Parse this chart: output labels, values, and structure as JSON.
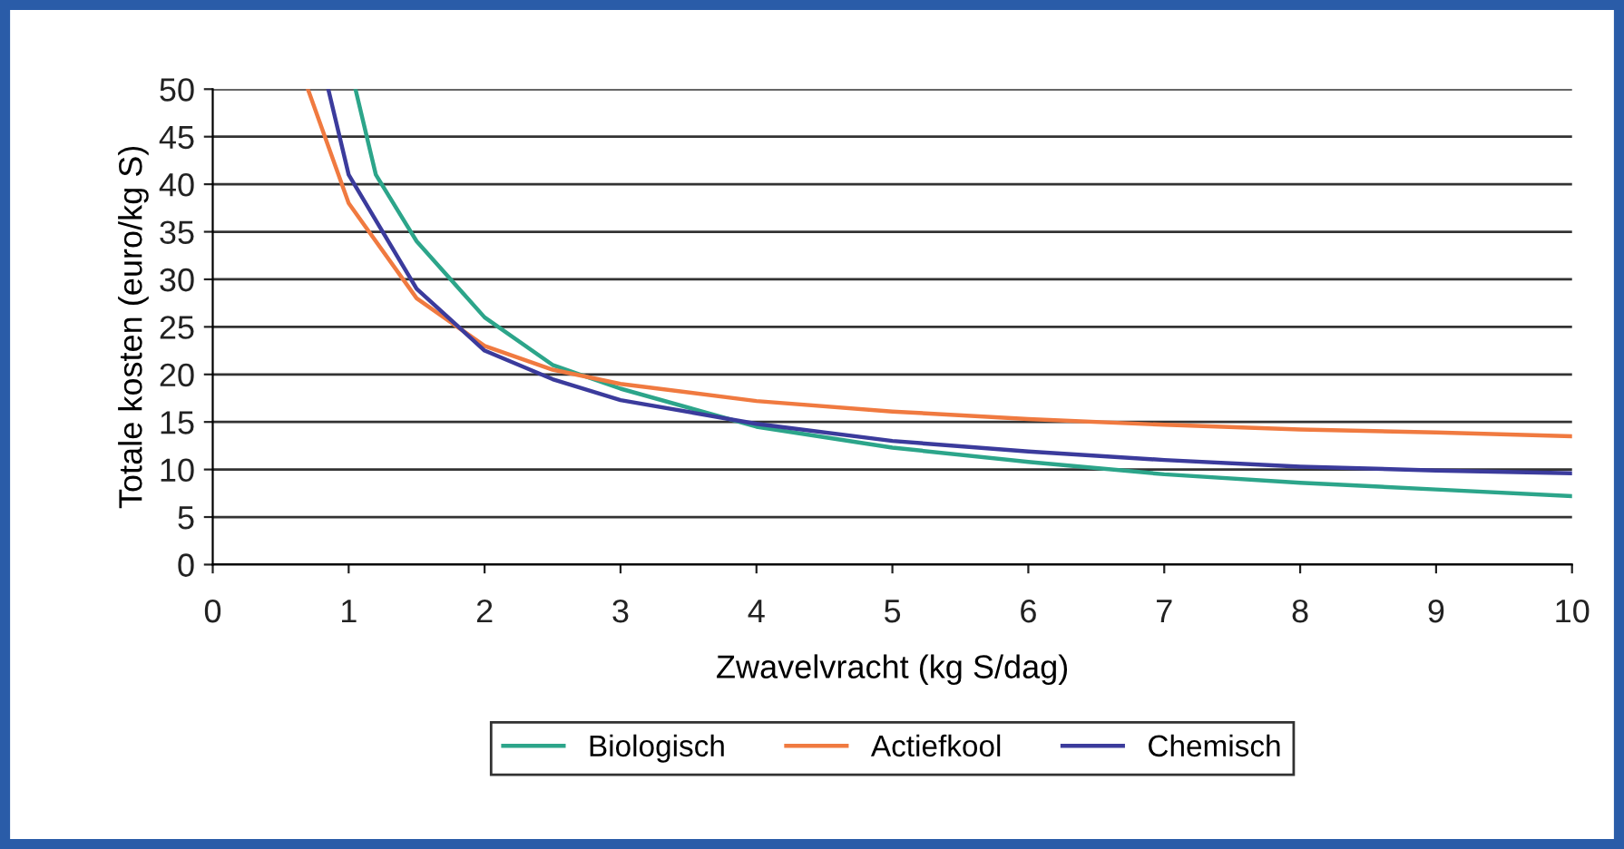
{
  "chart_data": {
    "type": "line",
    "xlabel": "Zwavelvracht (kg S/dag)",
    "ylabel": "Totale kosten (euro/kg S)",
    "xlim": [
      0,
      10
    ],
    "xticks": [
      0,
      1,
      2,
      3,
      4,
      5,
      6,
      7,
      8,
      9,
      10
    ],
    "ylim": [
      0,
      50
    ],
    "yticks": [
      0,
      5,
      10,
      15,
      20,
      25,
      30,
      35,
      40,
      45,
      50
    ],
    "grid": "y",
    "legend": "bottom",
    "marker": "none",
    "line_style": "solid",
    "series": [
      {
        "name": "Biologisch",
        "color": "#2ca58a",
        "x": [
          1.05,
          1.2,
          1.5,
          2,
          2.5,
          3,
          4,
          5,
          6,
          7,
          8,
          9,
          10
        ],
        "values": [
          50,
          41,
          34,
          26,
          21,
          18.5,
          14.5,
          12.3,
          10.8,
          9.5,
          8.6,
          7.9,
          7.2
        ]
      },
      {
        "name": "Actiefkool",
        "color": "#f07a40",
        "x": [
          0.7,
          1,
          1.5,
          2,
          2.5,
          3,
          4,
          5,
          6,
          7,
          8,
          9,
          10
        ],
        "values": [
          50,
          38,
          28,
          23,
          20.5,
          19,
          17.2,
          16.1,
          15.3,
          14.7,
          14.2,
          13.9,
          13.5
        ]
      },
      {
        "name": "Chemisch",
        "color": "#3b3b9c",
        "x": [
          0.85,
          1,
          1.5,
          2,
          2.5,
          3,
          4,
          5,
          6,
          7,
          8,
          9,
          10
        ],
        "values": [
          50,
          41,
          29,
          22.5,
          19.5,
          17.3,
          14.8,
          13,
          11.9,
          11,
          10.3,
          9.9,
          9.6
        ]
      }
    ]
  }
}
